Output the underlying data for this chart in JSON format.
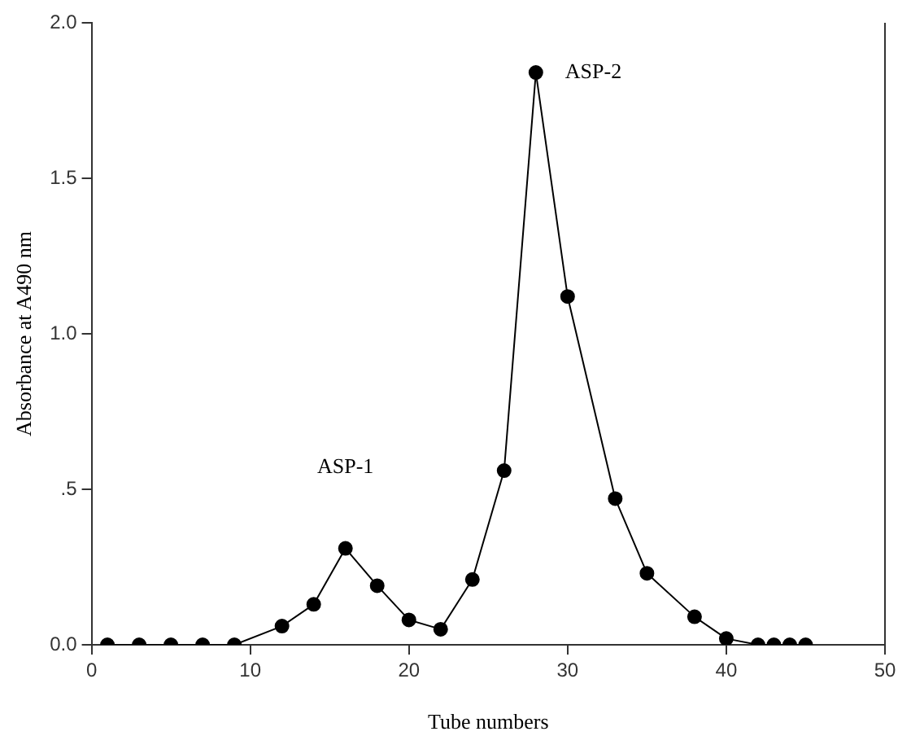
{
  "chart_data": {
    "type": "line",
    "xlabel": "Tube numbers",
    "ylabel": "Absorbance at A490 nm",
    "x": [
      1,
      3,
      5,
      7,
      9,
      12,
      14,
      16,
      18,
      20,
      22,
      24,
      26,
      28,
      30,
      33,
      35,
      38,
      40,
      42,
      43,
      44,
      45
    ],
    "series": [
      {
        "color": "#000000",
        "values": [
          0,
          0,
          0,
          0,
          0,
          0.06,
          0.13,
          0.31,
          0.19,
          0.08,
          0.05,
          0.21,
          0.56,
          1.84,
          1.12,
          0.47,
          0.23,
          0.09,
          0.02,
          0,
          0,
          0,
          0
        ]
      }
    ],
    "xlim": [
      0,
      50
    ],
    "xticks": [
      0,
      10,
      20,
      30,
      40,
      50
    ],
    "ylim": [
      0,
      2
    ],
    "yticks": [
      {
        "value": 0,
        "label": "0.0"
      },
      {
        "value": 0.5,
        "label": ".5"
      },
      {
        "value": 1,
        "label": "1.0"
      },
      {
        "value": 1.5,
        "label": "1.5"
      },
      {
        "value": 2,
        "label": "2.0"
      }
    ],
    "annotations": [
      "ASP-1",
      {
        "text": "ASP-2",
        "x": 28,
        "y": 1.84
      }
    ],
    "marker": "circle",
    "line_style": "solid",
    "grid": false,
    "legend": false
  }
}
